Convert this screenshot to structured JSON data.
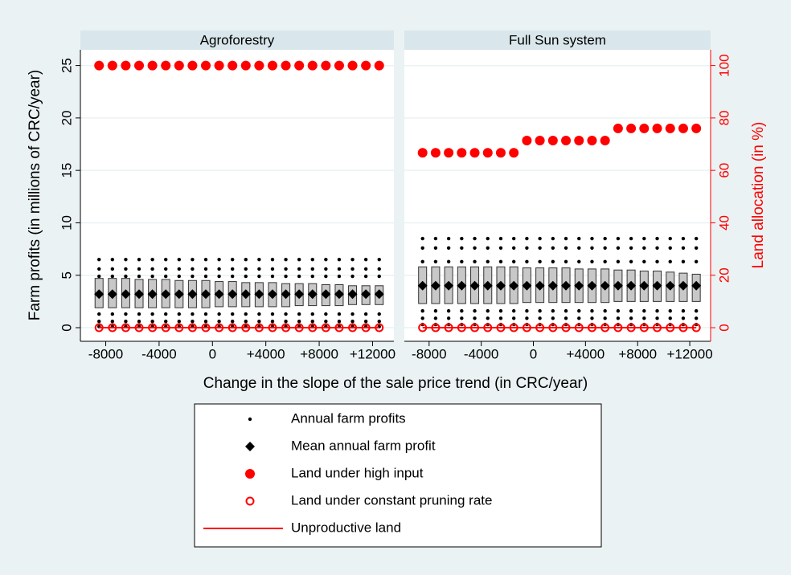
{
  "chart_data": {
    "type": "scatter",
    "panels": [
      "Agroforestry",
      "Full Sun system"
    ],
    "xlabel": "Change in the slope of the sale price trend (in CRC/year)",
    "ylabel": "Farm profits (in millions of CRC/year)",
    "y2label": "Land allocation (in %)",
    "x": [
      -8500,
      -7500,
      -6500,
      -5500,
      -4500,
      -3500,
      -2500,
      -1500,
      -500,
      500,
      1500,
      2500,
      3500,
      4500,
      5500,
      6500,
      7500,
      8500,
      9500,
      10500,
      11500,
      12500
    ],
    "xlim": [
      -9900,
      13600
    ],
    "xticks": [
      -8000,
      -4000,
      0,
      {
        "value": 4000,
        "label": "+4000"
      },
      {
        "value": 8000,
        "label": "+8000"
      },
      {
        "value": 12000,
        "label": "+12000"
      }
    ],
    "ylim": [
      -1.3,
      26.5
    ],
    "yticks": [
      0,
      5,
      10,
      15,
      20,
      25
    ],
    "y2lim": [
      -5.2,
      106
    ],
    "y2ticks": [
      0,
      20,
      40,
      60,
      80,
      100
    ],
    "grid": true,
    "box_color": "#c8c8c8",
    "boxes": {
      "q1": [
        [
          1.9,
          1.9,
          1.9,
          1.9,
          1.9,
          1.9,
          1.9,
          1.9,
          1.9,
          2.0,
          2.0,
          2.0,
          2.0,
          2.0,
          2.0,
          2.1,
          2.1,
          2.1,
          2.1,
          2.2,
          2.2,
          2.2
        ],
        [
          2.3,
          2.3,
          2.3,
          2.3,
          2.3,
          2.3,
          2.3,
          2.3,
          2.4,
          2.4,
          2.4,
          2.4,
          2.4,
          2.4,
          2.4,
          2.5,
          2.5,
          2.5,
          2.5,
          2.5,
          2.5,
          2.5
        ]
      ],
      "q3": [
        [
          4.7,
          4.7,
          4.7,
          4.6,
          4.6,
          4.6,
          4.5,
          4.5,
          4.5,
          4.4,
          4.4,
          4.3,
          4.3,
          4.3,
          4.2,
          4.2,
          4.2,
          4.1,
          4.1,
          4.0,
          4.0,
          4.0
        ],
        [
          5.8,
          5.8,
          5.8,
          5.8,
          5.8,
          5.8,
          5.8,
          5.8,
          5.7,
          5.7,
          5.7,
          5.7,
          5.6,
          5.6,
          5.6,
          5.5,
          5.5,
          5.4,
          5.4,
          5.3,
          5.2,
          5.1
        ]
      ]
    },
    "series": [
      {
        "name": "Annual farm profits",
        "marker": "dot",
        "color": "#000000",
        "axis": "y",
        "values": [
          [
            [
              0.1,
              0.6,
              1.3,
              4.9,
              5.6,
              6.5
            ],
            [
              0.1,
              0.6,
              1.3,
              4.9,
              5.6,
              6.5
            ],
            [
              0.1,
              0.6,
              1.3,
              4.9,
              5.6,
              6.5
            ],
            [
              0.1,
              0.6,
              1.3,
              4.9,
              5.6,
              6.5
            ],
            [
              0.1,
              0.6,
              1.3,
              4.9,
              5.6,
              6.5
            ],
            [
              0.1,
              0.6,
              1.3,
              4.9,
              5.6,
              6.5
            ],
            [
              0.1,
              0.6,
              1.3,
              4.9,
              5.6,
              6.5
            ],
            [
              0.1,
              0.6,
              1.3,
              4.9,
              5.6,
              6.5
            ],
            [
              0.1,
              0.6,
              1.3,
              4.9,
              5.6,
              6.5
            ],
            [
              0.1,
              0.6,
              1.3,
              4.9,
              5.6,
              6.5
            ],
            [
              0.1,
              0.6,
              1.3,
              4.9,
              5.6,
              6.5
            ],
            [
              0.1,
              0.6,
              1.3,
              4.9,
              5.6,
              6.5
            ],
            [
              0.1,
              0.6,
              1.3,
              4.9,
              5.6,
              6.5
            ],
            [
              0.1,
              0.6,
              1.3,
              4.9,
              5.6,
              6.5
            ],
            [
              0.1,
              0.6,
              1.3,
              4.9,
              5.6,
              6.5
            ],
            [
              0.1,
              0.6,
              1.3,
              4.9,
              5.6,
              6.5
            ],
            [
              0.1,
              0.6,
              1.3,
              4.9,
              5.6,
              6.5
            ],
            [
              0.1,
              0.6,
              1.3,
              4.9,
              5.6,
              6.5
            ],
            [
              0.1,
              0.6,
              1.3,
              4.9,
              5.6,
              6.5
            ],
            [
              0.1,
              0.6,
              1.3,
              4.9,
              5.6,
              6.5
            ],
            [
              0.1,
              0.6,
              1.3,
              4.9,
              5.6,
              6.5
            ],
            [
              0.1,
              0.6,
              1.3,
              4.9,
              5.6,
              6.5
            ]
          ],
          [
            [
              0.3,
              0.9,
              1.6,
              6.3,
              7.6,
              8.5
            ],
            [
              0.3,
              0.9,
              1.6,
              6.3,
              7.6,
              8.5
            ],
            [
              0.3,
              0.9,
              1.6,
              6.3,
              7.6,
              8.5
            ],
            [
              0.3,
              0.9,
              1.6,
              6.3,
              7.6,
              8.5
            ],
            [
              0.3,
              0.9,
              1.6,
              6.3,
              7.6,
              8.5
            ],
            [
              0.3,
              0.9,
              1.6,
              6.3,
              7.6,
              8.5
            ],
            [
              0.3,
              0.9,
              1.6,
              6.3,
              7.6,
              8.5
            ],
            [
              0.3,
              0.9,
              1.6,
              6.3,
              7.6,
              8.5
            ],
            [
              0.3,
              0.9,
              1.6,
              6.3,
              7.6,
              8.5
            ],
            [
              0.3,
              0.9,
              1.6,
              6.3,
              7.6,
              8.5
            ],
            [
              0.3,
              0.9,
              1.6,
              6.3,
              7.6,
              8.5
            ],
            [
              0.3,
              0.9,
              1.6,
              6.3,
              7.6,
              8.5
            ],
            [
              0.3,
              0.9,
              1.6,
              6.3,
              7.6,
              8.5
            ],
            [
              0.3,
              0.9,
              1.6,
              6.3,
              7.6,
              8.5
            ],
            [
              0.3,
              0.9,
              1.6,
              6.3,
              7.6,
              8.5
            ],
            [
              0.3,
              0.9,
              1.6,
              6.3,
              7.6,
              8.5
            ],
            [
              0.3,
              0.9,
              1.6,
              6.3,
              7.6,
              8.5
            ],
            [
              0.3,
              0.9,
              1.6,
              6.3,
              7.6,
              8.5
            ],
            [
              0.3,
              0.9,
              1.6,
              6.3,
              7.6,
              8.5
            ],
            [
              0.3,
              0.9,
              1.6,
              6.3,
              7.6,
              8.5
            ],
            [
              0.3,
              0.9,
              1.6,
              6.3,
              7.6,
              8.5
            ],
            [
              0.3,
              0.9,
              1.6,
              6.3,
              7.6,
              8.5
            ]
          ]
        ]
      },
      {
        "name": "Mean annual farm profit",
        "marker": "diamond",
        "color": "#000000",
        "axis": "y",
        "values": [
          [
            3.2,
            3.2,
            3.2,
            3.2,
            3.2,
            3.2,
            3.2,
            3.2,
            3.2,
            3.2,
            3.2,
            3.2,
            3.2,
            3.2,
            3.2,
            3.2,
            3.2,
            3.2,
            3.2,
            3.2,
            3.2,
            3.2
          ],
          [
            4.0,
            4.0,
            4.0,
            4.0,
            4.0,
            4.0,
            4.0,
            4.0,
            4.0,
            4.0,
            4.0,
            4.0,
            4.0,
            4.0,
            4.0,
            4.0,
            4.0,
            4.0,
            4.0,
            4.0,
            4.0,
            4.0
          ]
        ]
      },
      {
        "name": "Land under high input",
        "marker": "filled-circle",
        "color": "#ff0000",
        "axis": "y2",
        "values": [
          [
            100,
            100,
            100,
            100,
            100,
            100,
            100,
            100,
            100,
            100,
            100,
            100,
            100,
            100,
            100,
            100,
            100,
            100,
            100,
            100,
            100,
            100
          ],
          [
            66.7,
            66.7,
            66.7,
            66.7,
            66.7,
            66.7,
            66.7,
            66.7,
            71.4,
            71.4,
            71.4,
            71.4,
            71.4,
            71.4,
            71.4,
            76,
            76,
            76,
            76,
            76,
            76,
            76
          ]
        ]
      },
      {
        "name": "Land under constant pruning rate",
        "marker": "hollow-circle",
        "color": "#ff0000",
        "axis": "y2",
        "values": [
          [
            0,
            0,
            0,
            0,
            0,
            0,
            0,
            0,
            0,
            0,
            0,
            0,
            0,
            0,
            0,
            0,
            0,
            0,
            0,
            0,
            0,
            0
          ],
          [
            0,
            0,
            0,
            0,
            0,
            0,
            0,
            0,
            0,
            0,
            0,
            0,
            0,
            0,
            0,
            0,
            0,
            0,
            0,
            0,
            0,
            0
          ]
        ]
      },
      {
        "name": "Unproductive land",
        "marker": "line",
        "color": "#ff0000",
        "axis": "y2",
        "values": [
          [
            0,
            0,
            0,
            0,
            0,
            0,
            0,
            0,
            0,
            0,
            0,
            0,
            0,
            0,
            0,
            0,
            0,
            0,
            0,
            0,
            0,
            0
          ],
          [
            0,
            0,
            0,
            0,
            0,
            0,
            0,
            0,
            0,
            0,
            0,
            0,
            0,
            0,
            0,
            0,
            0,
            0,
            0,
            0,
            0,
            0
          ]
        ]
      }
    ]
  }
}
